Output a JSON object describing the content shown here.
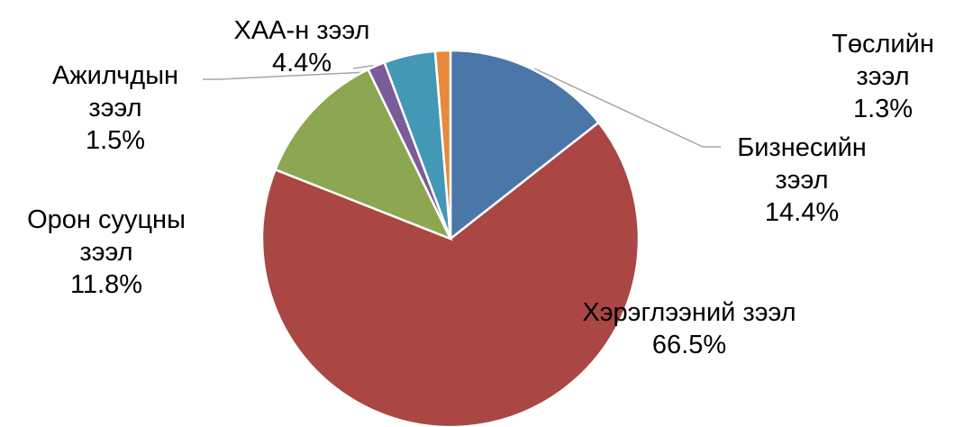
{
  "chart_data": {
    "type": "pie",
    "categories": [
      "Бизнесийн зээл",
      "Хэрэглээний зээл",
      "Орон сууцны зээл",
      "Ажилчдын зээл",
      "ХАА-н зээл",
      "Төслийн зээл"
    ],
    "values": [
      14.4,
      66.5,
      11.8,
      1.5,
      4.4,
      1.3
    ],
    "value_labels": [
      "14.4%",
      "66.5%",
      "11.8%",
      "1.5%",
      "4.4%",
      "1.3%"
    ],
    "colors": [
      "#4a76a8",
      "#aa4644",
      "#8ca652",
      "#7a5c98",
      "#4298b5",
      "#e8893b"
    ]
  }
}
